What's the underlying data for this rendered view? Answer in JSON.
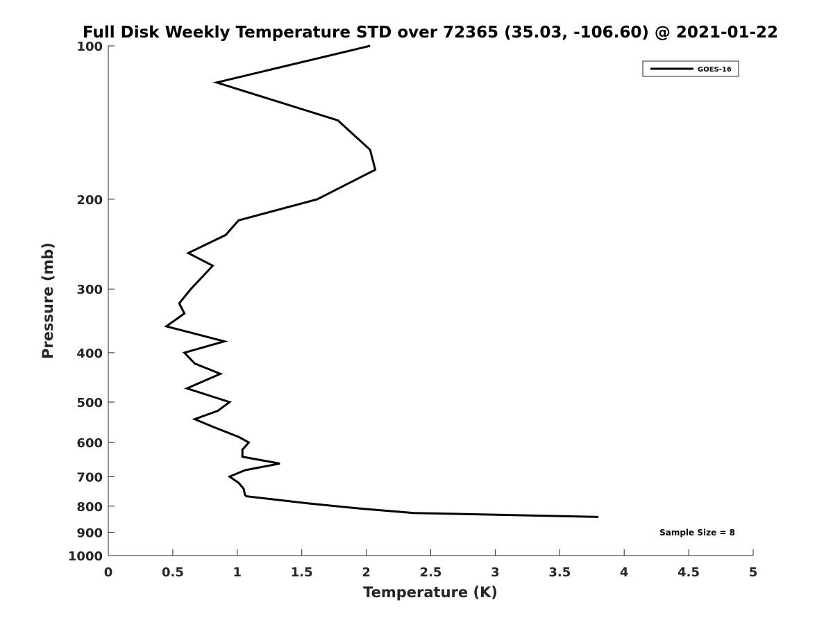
{
  "chart_data": {
    "type": "line",
    "title": "Full Disk Weekly Temperature STD over 72365 (35.03, -106.60) @ 2021-01-22",
    "xlabel": "Temperature (K)",
    "ylabel": "Pressure (mb)",
    "xlim": [
      0,
      5
    ],
    "ylim": [
      100,
      1000
    ],
    "yscale": "log",
    "yreversed": true,
    "xticks": [
      0,
      0.5,
      1,
      1.5,
      2,
      2.5,
      3,
      3.5,
      4,
      4.5,
      5
    ],
    "xtick_labels": [
      "0",
      "0.5",
      "1",
      "1.5",
      "2",
      "2.5",
      "3",
      "3.5",
      "4",
      "4.5",
      "5"
    ],
    "yticks": [
      100,
      200,
      300,
      400,
      500,
      600,
      700,
      800,
      900,
      1000
    ],
    "ytick_labels": [
      "100",
      "200",
      "300",
      "400",
      "500",
      "600",
      "700",
      "800",
      "900",
      "1000"
    ],
    "grid": false,
    "legend_position": "top-right",
    "series": [
      {
        "name": "GOES-16",
        "color": "#000000",
        "x": [
          2.03,
          0.84,
          1.78,
          2.03,
          2.07,
          1.62,
          1.01,
          0.91,
          0.62,
          0.81,
          0.64,
          0.55,
          0.59,
          0.45,
          0.9,
          0.59,
          0.67,
          0.87,
          0.61,
          0.94,
          0.85,
          0.67,
          0.82,
          1.01,
          1.09,
          1.04,
          1.04,
          1.33,
          1.06,
          0.94,
          1.01,
          1.05,
          1.06,
          1.07,
          1.55,
          1.98,
          2.37,
          3.8
        ],
        "y": [
          100,
          118,
          140,
          160,
          175,
          200,
          220,
          235,
          255,
          270,
          300,
          320,
          335,
          355,
          380,
          400,
          420,
          440,
          470,
          500,
          520,
          540,
          560,
          585,
          600,
          620,
          640,
          660,
          680,
          700,
          720,
          740,
          760,
          765,
          790,
          810,
          825,
          840
        ]
      }
    ],
    "annotations": [
      "Sample Size = 8"
    ]
  }
}
